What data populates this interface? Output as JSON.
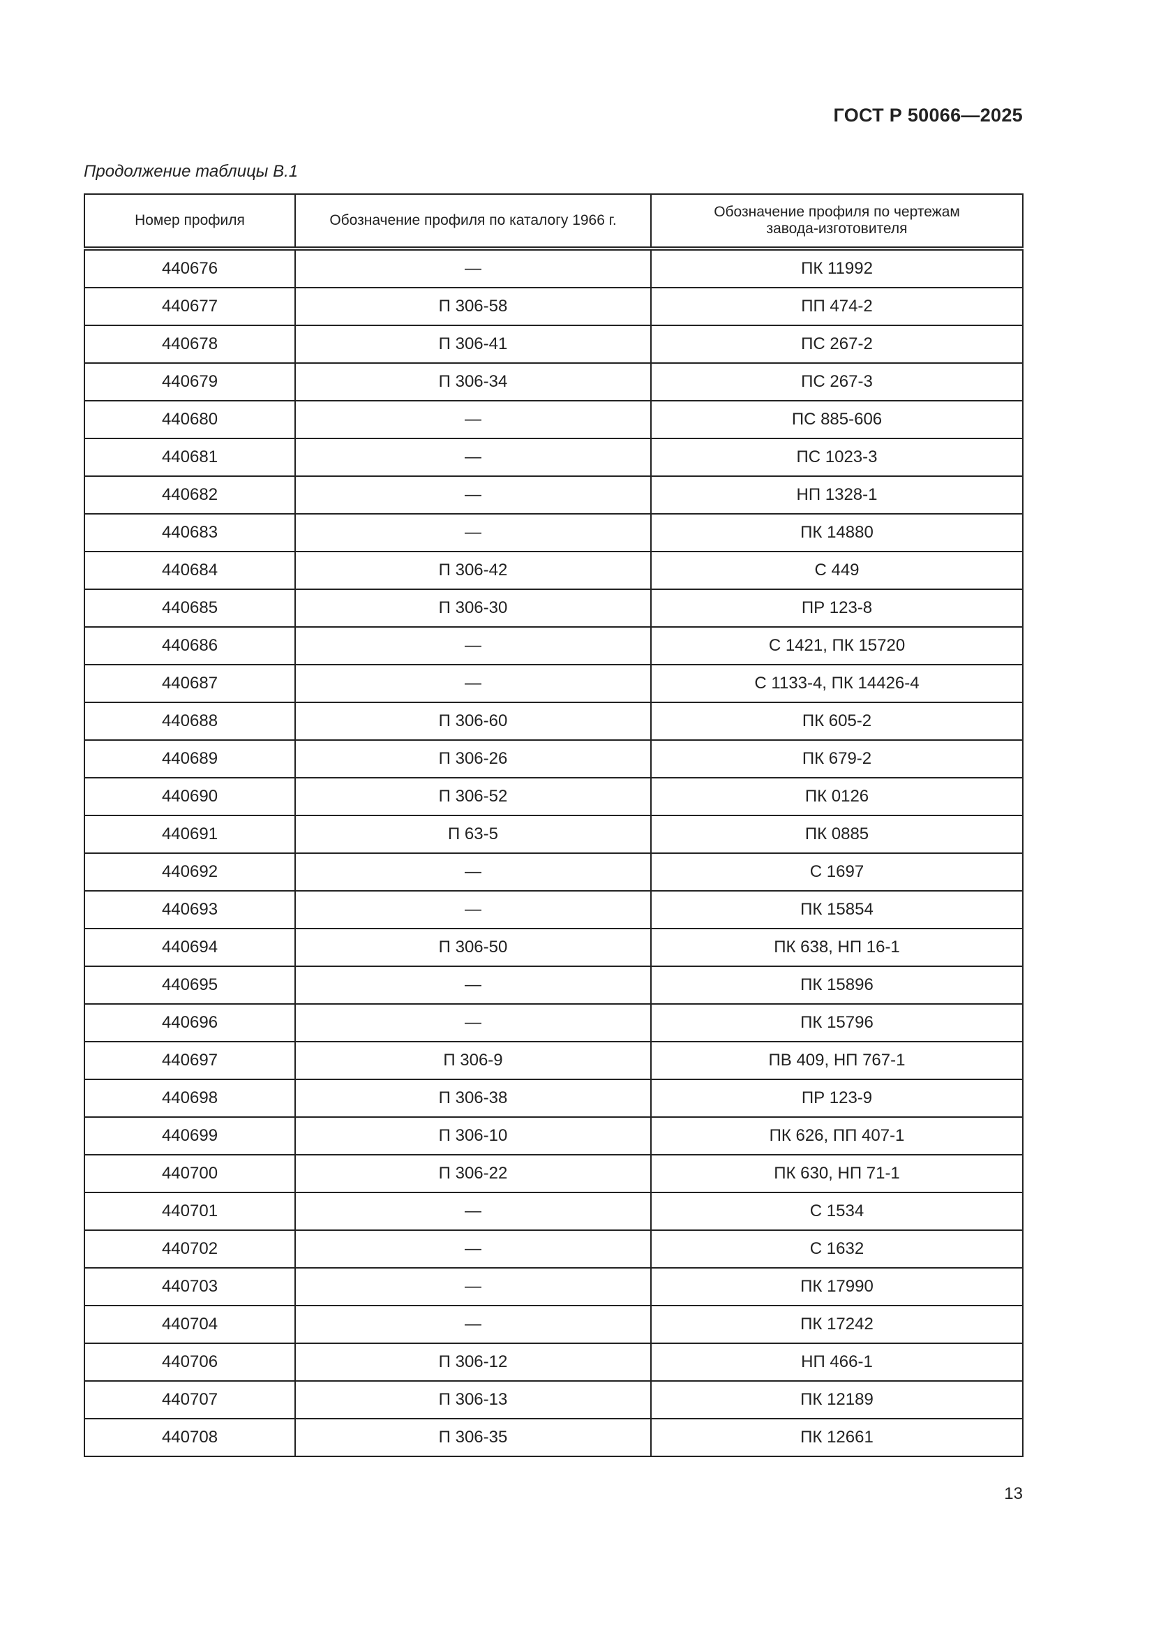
{
  "header": {
    "standard": "ГОСТ Р 50066—2025"
  },
  "caption": "Продолжение таблицы В.1",
  "table": {
    "columns": [
      "Номер профиля",
      "Обозначение профиля по каталогу 1966 г.",
      "Обозначение профиля по чертежам завода-изготовителя"
    ],
    "rows": [
      [
        "440676",
        "—",
        "ПК 11992"
      ],
      [
        "440677",
        "П 306-58",
        "ПП 474-2"
      ],
      [
        "440678",
        "П 306-41",
        "ПС 267-2"
      ],
      [
        "440679",
        "П 306-34",
        "ПС 267-3"
      ],
      [
        "440680",
        "—",
        "ПС 885-606"
      ],
      [
        "440681",
        "—",
        "ПС 1023-3"
      ],
      [
        "440682",
        "—",
        "НП 1328-1"
      ],
      [
        "440683",
        "—",
        "ПК 14880"
      ],
      [
        "440684",
        "П 306-42",
        "С 449"
      ],
      [
        "440685",
        "П 306-30",
        "ПР 123-8"
      ],
      [
        "440686",
        "—",
        "С 1421, ПК 15720"
      ],
      [
        "440687",
        "—",
        "С 1133-4, ПК 14426-4"
      ],
      [
        "440688",
        "П 306-60",
        "ПК 605-2"
      ],
      [
        "440689",
        "П 306-26",
        "ПК 679-2"
      ],
      [
        "440690",
        "П 306-52",
        "ПК 0126"
      ],
      [
        "440691",
        "П 63-5",
        "ПК 0885"
      ],
      [
        "440692",
        "—",
        "С 1697"
      ],
      [
        "440693",
        "—",
        "ПК 15854"
      ],
      [
        "440694",
        "П 306-50",
        "ПК 638, НП 16-1"
      ],
      [
        "440695",
        "—",
        "ПК 15896"
      ],
      [
        "440696",
        "—",
        "ПК 15796"
      ],
      [
        "440697",
        "П 306-9",
        "ПВ 409, НП 767-1"
      ],
      [
        "440698",
        "П 306-38",
        "ПР 123-9"
      ],
      [
        "440699",
        "П 306-10",
        "ПК 626, ПП 407-1"
      ],
      [
        "440700",
        "П 306-22",
        "ПК 630, НП 71-1"
      ],
      [
        "440701",
        "—",
        "С 1534"
      ],
      [
        "440702",
        "—",
        "С 1632"
      ],
      [
        "440703",
        "—",
        "ПК 17990"
      ],
      [
        "440704",
        "—",
        "ПК 17242"
      ],
      [
        "440706",
        "П 306-12",
        "НП 466-1"
      ],
      [
        "440707",
        "П 306-13",
        "ПК 12189"
      ],
      [
        "440708",
        "П 306-35",
        "ПК 12661"
      ]
    ]
  },
  "page_number": "13"
}
